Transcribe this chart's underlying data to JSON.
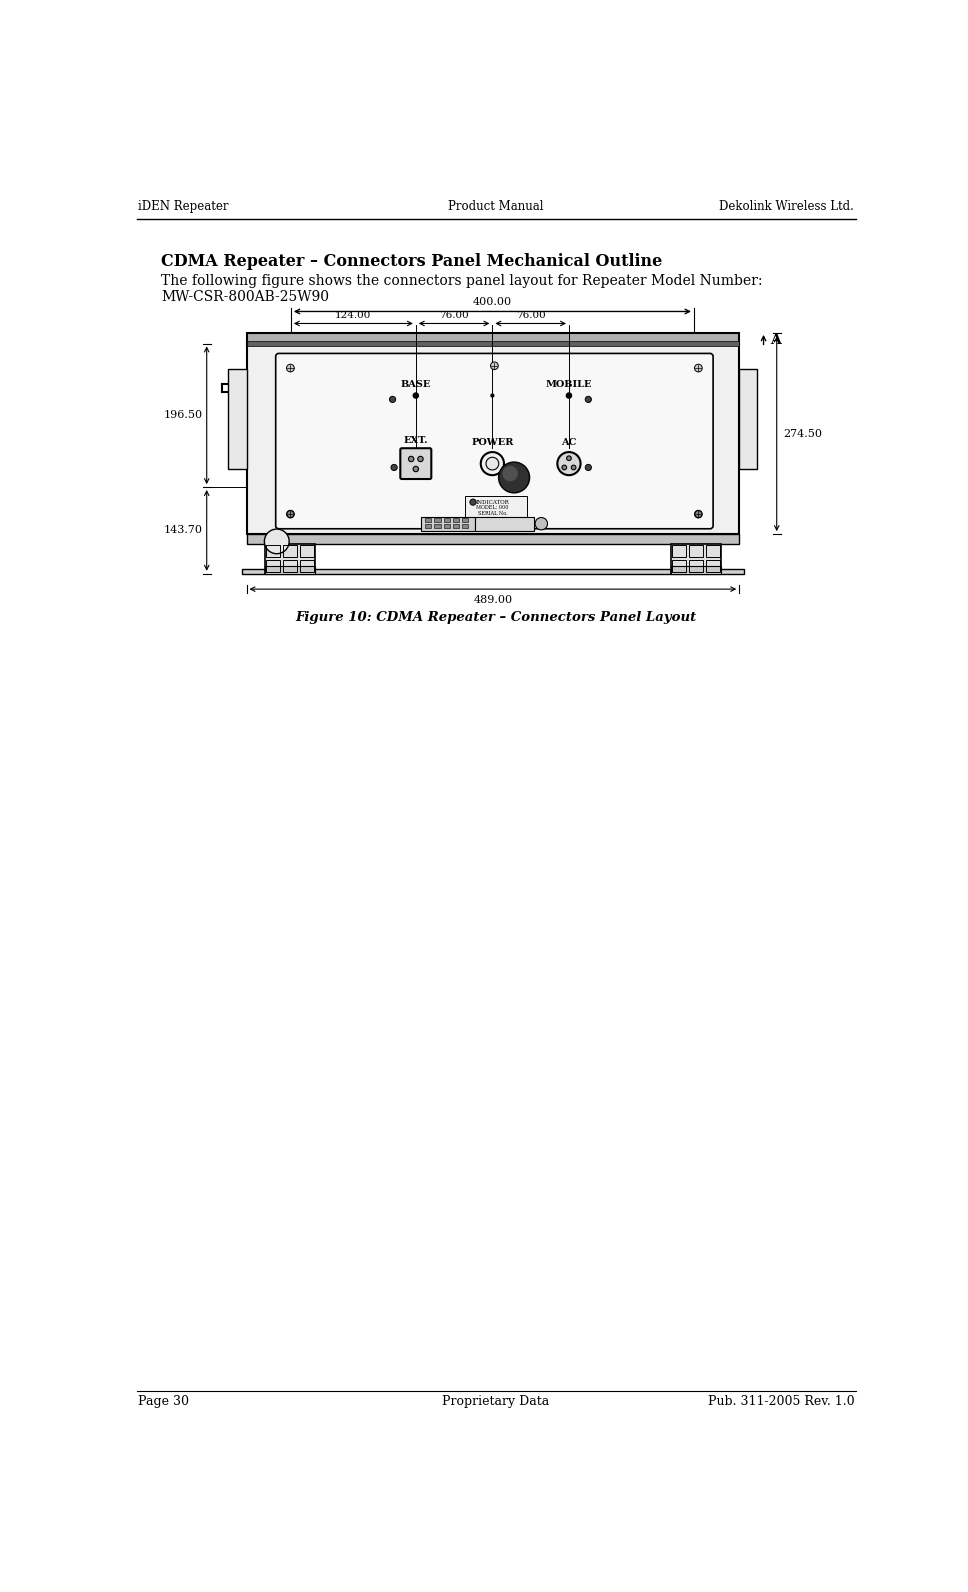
{
  "header_left": "iDEN Repeater",
  "header_center": "Product Manual",
  "header_right": "Dekolink Wireless Ltd.",
  "footer_left": "Page 30",
  "footer_center": "Proprietary Data",
  "footer_right": "Pub. 311-2005 Rev. 1.0",
  "section_title": "CDMA Repeater – Connectors Panel Mechanical Outline",
  "body_text_line1": "The following figure shows the connectors panel layout for Repeater Model Number:",
  "body_text_line2": "MW-CSR-800AB-25W90",
  "figure_caption": "Figure 10: CDMA Repeater – Connectors Panel Layout",
  "dim_400": "400.00",
  "dim_124": "124.00",
  "dim_76a": "76.00",
  "dim_76b": "76.00",
  "dim_274": "274.50",
  "dim_196": "196.50",
  "dim_143": "143.70",
  "dim_489": "489.00",
  "label_base": "BASE",
  "label_mobile": "MOBILE",
  "label_ext": "EXT.",
  "label_power": "POWER",
  "label_ac": "AC",
  "label_a": "A",
  "bg_color": "#ffffff",
  "text_color": "#000000",
  "line_color": "#000000"
}
